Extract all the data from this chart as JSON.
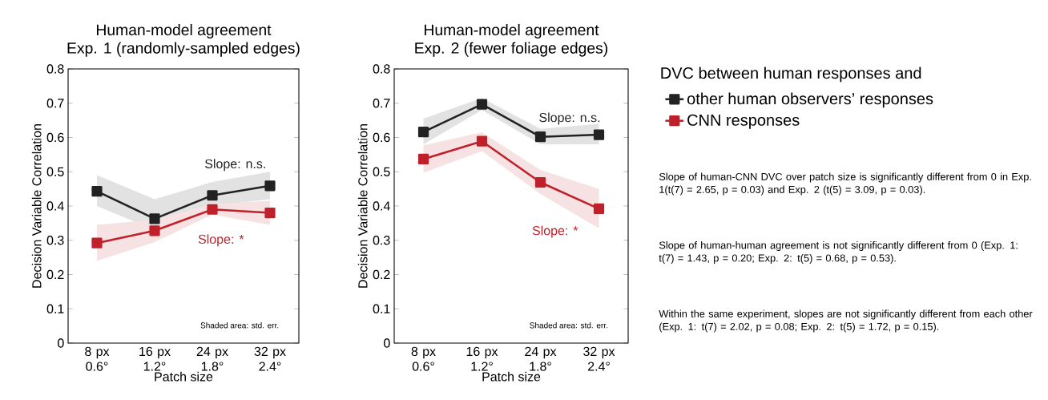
{
  "chart_data": [
    {
      "type": "line",
      "title": "Human-model agreement",
      "subtitle": "Exp. 1 (randomly-sampled edges)",
      "xlabel": "Patch size",
      "ylabel": "Decision Variable Correlation",
      "categories": [
        "8 px 0.6°",
        "16 px 1.2°",
        "24 px 1.8°",
        "32 px 2.4°"
      ],
      "series": [
        {
          "color": "#222222",
          "values": [
            0.443,
            0.363,
            0.431,
            0.459
          ],
          "lower": [
            0.4,
            0.33,
            0.4,
            0.42
          ],
          "upper": [
            0.49,
            0.42,
            0.47,
            0.5
          ]
        },
        {
          "color": "#c0202a",
          "values": [
            0.292,
            0.328,
            0.39,
            0.38
          ],
          "lower": [
            0.24,
            0.295,
            0.375,
            0.345
          ],
          "upper": [
            0.345,
            0.36,
            0.405,
            0.415
          ]
        }
      ],
      "ylim": [
        0,
        0.8
      ],
      "yticks": [
        0,
        0.1,
        0.2,
        0.3,
        0.4,
        0.5,
        0.6,
        0.7,
        0.8
      ],
      "marker": "square",
      "legend": false,
      "annotations": [
        "Slope: n.s.",
        "Slope: *",
        "Shaded area: std. err."
      ]
    },
    {
      "type": "line",
      "title": "Human-model agreement",
      "subtitle": "Exp. 2 (fewer foliage edges)",
      "xlabel": "Patch size",
      "ylabel": "Decision Variable Correlation",
      "categories": [
        "8 px 0.6°",
        "16 px 1.2°",
        "24 px 1.8°",
        "32 px 2.4°"
      ],
      "series": [
        {
          "name": "other human observers’ responses",
          "color": "#222222",
          "values": [
            0.616,
            0.697,
            0.602,
            0.608
          ],
          "lower": [
            0.58,
            0.68,
            0.58,
            0.58
          ],
          "upper": [
            0.655,
            0.715,
            0.625,
            0.64
          ]
        },
        {
          "name": "CNN responses",
          "color": "#c0202a",
          "values": [
            0.537,
            0.589,
            0.469,
            0.392
          ],
          "lower": [
            0.497,
            0.56,
            0.435,
            0.335
          ],
          "upper": [
            0.577,
            0.615,
            0.505,
            0.45
          ]
        }
      ],
      "ylim": [
        0,
        0.8
      ],
      "yticks": [
        0,
        0.1,
        0.2,
        0.3,
        0.4,
        0.5,
        0.6,
        0.7,
        0.8
      ],
      "marker": "square",
      "legend": "right",
      "legend_title": "DVC between human responses and",
      "annotations": [
        "Slope: n.s.",
        "Slope: *",
        "Shaded area: std. err.",
        "Slope of human-CNN DVC over patch size is significantly different from 0 in Exp. 1(t(7) = 2.65, p = 0.03) and Exp. 2 (t(5) = 3.09, p = 0.03).",
        "Slope of human-human agreement is not significantly different from 0 (Exp. 1: t(7) = 1.43, p = 0.20; Exp. 2: t(5) = 0.68, p = 0.53).",
        "Within the same experiment, slopes are not significantly different from each other (Exp. 1: t(7) = 2.02, p = 0.08; Exp. 2: t(5) = 1.72, p = 0.15)."
      ]
    }
  ]
}
